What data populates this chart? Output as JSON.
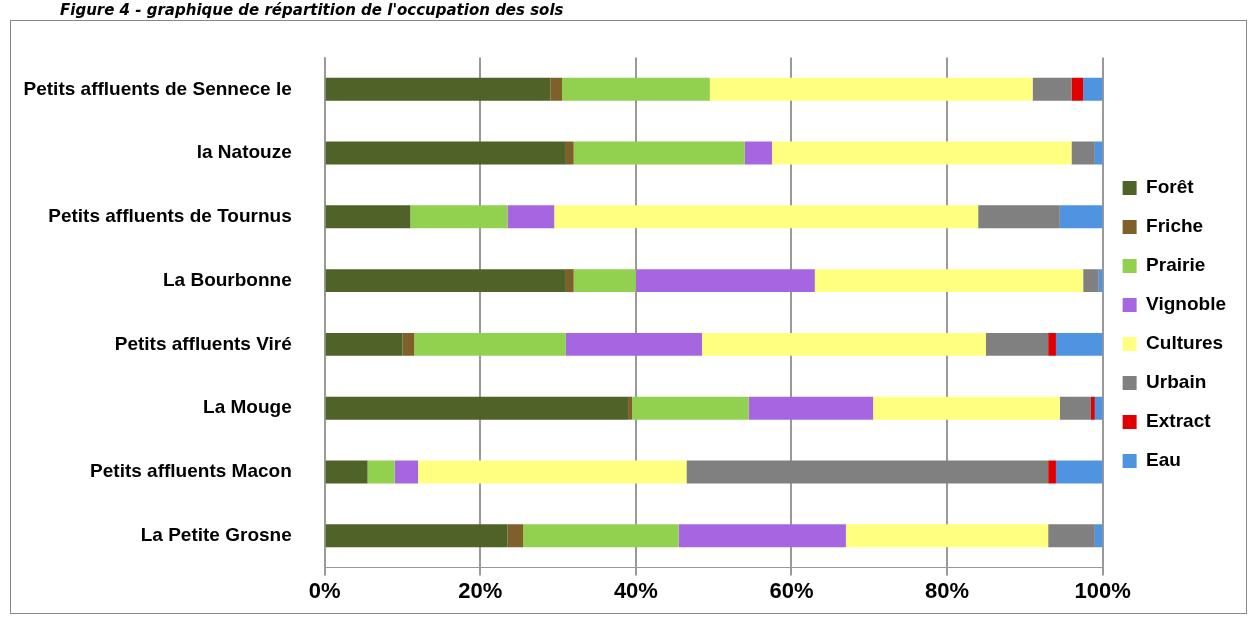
{
  "chart_data": {
    "type": "bar",
    "orientation": "horizontal",
    "stacked": true,
    "title": "Figure 4 - graphique de répartition de l'occupation des sols",
    "categories": [
      "Petits affluents de Sennece le",
      "la Natouze",
      "Petits affluents de Tournus",
      "La Bourbonne",
      "Petits affluents Viré",
      "La Mouge",
      "Petits affluents Macon",
      "La Petite Grosne"
    ],
    "series": [
      {
        "name": "Forêt",
        "color": "#4f6228",
        "values": [
          29,
          31,
          11,
          31,
          10,
          39,
          5.5,
          23.5
        ]
      },
      {
        "name": "Friche",
        "color": "#7f5f2a",
        "values": [
          1.5,
          1,
          0,
          1,
          1.5,
          0.5,
          0,
          2
        ]
      },
      {
        "name": "Prairie",
        "color": "#92d050",
        "values": [
          19,
          22,
          12.5,
          8,
          19.5,
          15,
          3.5,
          20
        ]
      },
      {
        "name": "Vignoble",
        "color": "#a666e1",
        "values": [
          0,
          3.5,
          6,
          23,
          17.5,
          16,
          3,
          21.5
        ]
      },
      {
        "name": "Cultures",
        "color": "#ffff80",
        "values": [
          41.5,
          38.5,
          54.5,
          34.5,
          36.5,
          24,
          34.5,
          26
        ]
      },
      {
        "name": "Urbain",
        "color": "#808080",
        "values": [
          5,
          3,
          10.5,
          2,
          8,
          4,
          46.5,
          6
        ]
      },
      {
        "name": "Extract",
        "color": "#e00000",
        "values": [
          1.5,
          0,
          0,
          0,
          1,
          0.5,
          1,
          0
        ]
      },
      {
        "name": "Eau",
        "color": "#4f94e0",
        "values": [
          2.5,
          1,
          5.5,
          0.5,
          6,
          1,
          6,
          1
        ]
      }
    ],
    "xlim": [
      0,
      100
    ],
    "xticks": [
      {
        "value": 0,
        "label": "0%"
      },
      {
        "value": 20,
        "label": "20%"
      },
      {
        "value": 40,
        "label": "40%"
      },
      {
        "value": 60,
        "label": "60%"
      },
      {
        "value": 80,
        "label": "80%"
      },
      {
        "value": 100,
        "label": "100%"
      }
    ],
    "grid": "x",
    "legend": "right"
  }
}
